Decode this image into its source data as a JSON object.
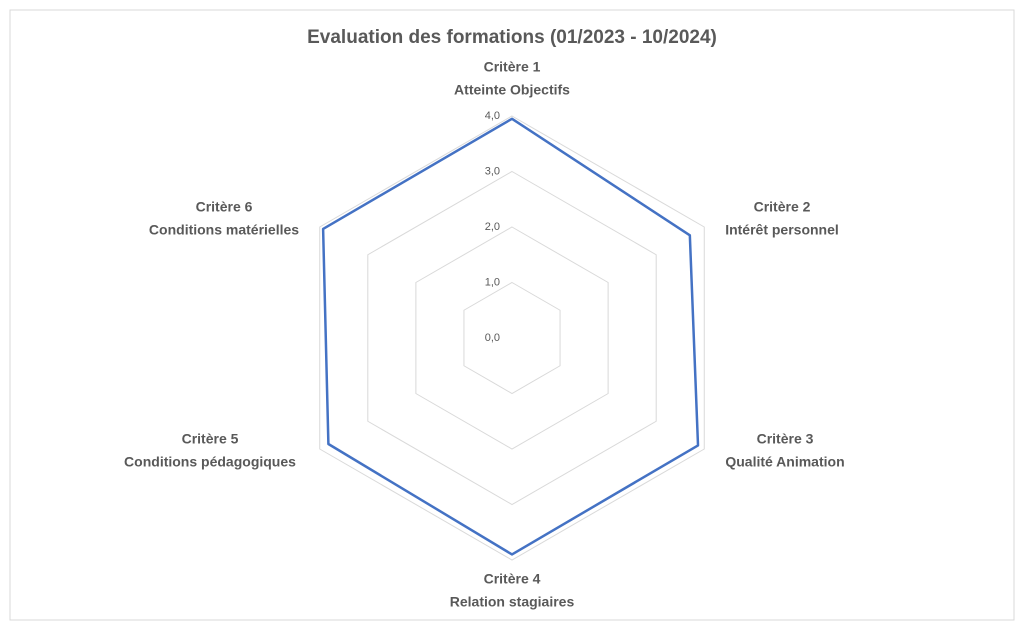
{
  "chart_data": {
    "type": "radar",
    "title": "Evaluation des formations (01/2023 - 10/2024)",
    "categories": [
      [
        "Critère 1",
        "Atteinte Objectifs"
      ],
      [
        "Critère 2",
        "Intérêt personnel"
      ],
      [
        "Critère 3",
        "Qualité Animation"
      ],
      [
        "Critère 4",
        "Relation stagiaires"
      ],
      [
        "Critère 5",
        "Conditions pédagogiques"
      ],
      [
        "Critère 6",
        "Conditions matérielles"
      ]
    ],
    "series": [
      {
        "color": "#4472c4",
        "values": [
          3.95,
          3.7,
          3.87,
          3.9,
          3.82,
          3.93
        ]
      }
    ],
    "ylim": [
      0,
      4
    ],
    "yticks": [
      {
        "value": 0,
        "label": "0,0"
      },
      {
        "value": 1,
        "label": "1,0"
      },
      {
        "value": 2,
        "label": "2,0"
      },
      {
        "value": 3,
        "label": "3,0"
      },
      {
        "value": 4,
        "label": "4,0"
      }
    ],
    "grid": true
  }
}
